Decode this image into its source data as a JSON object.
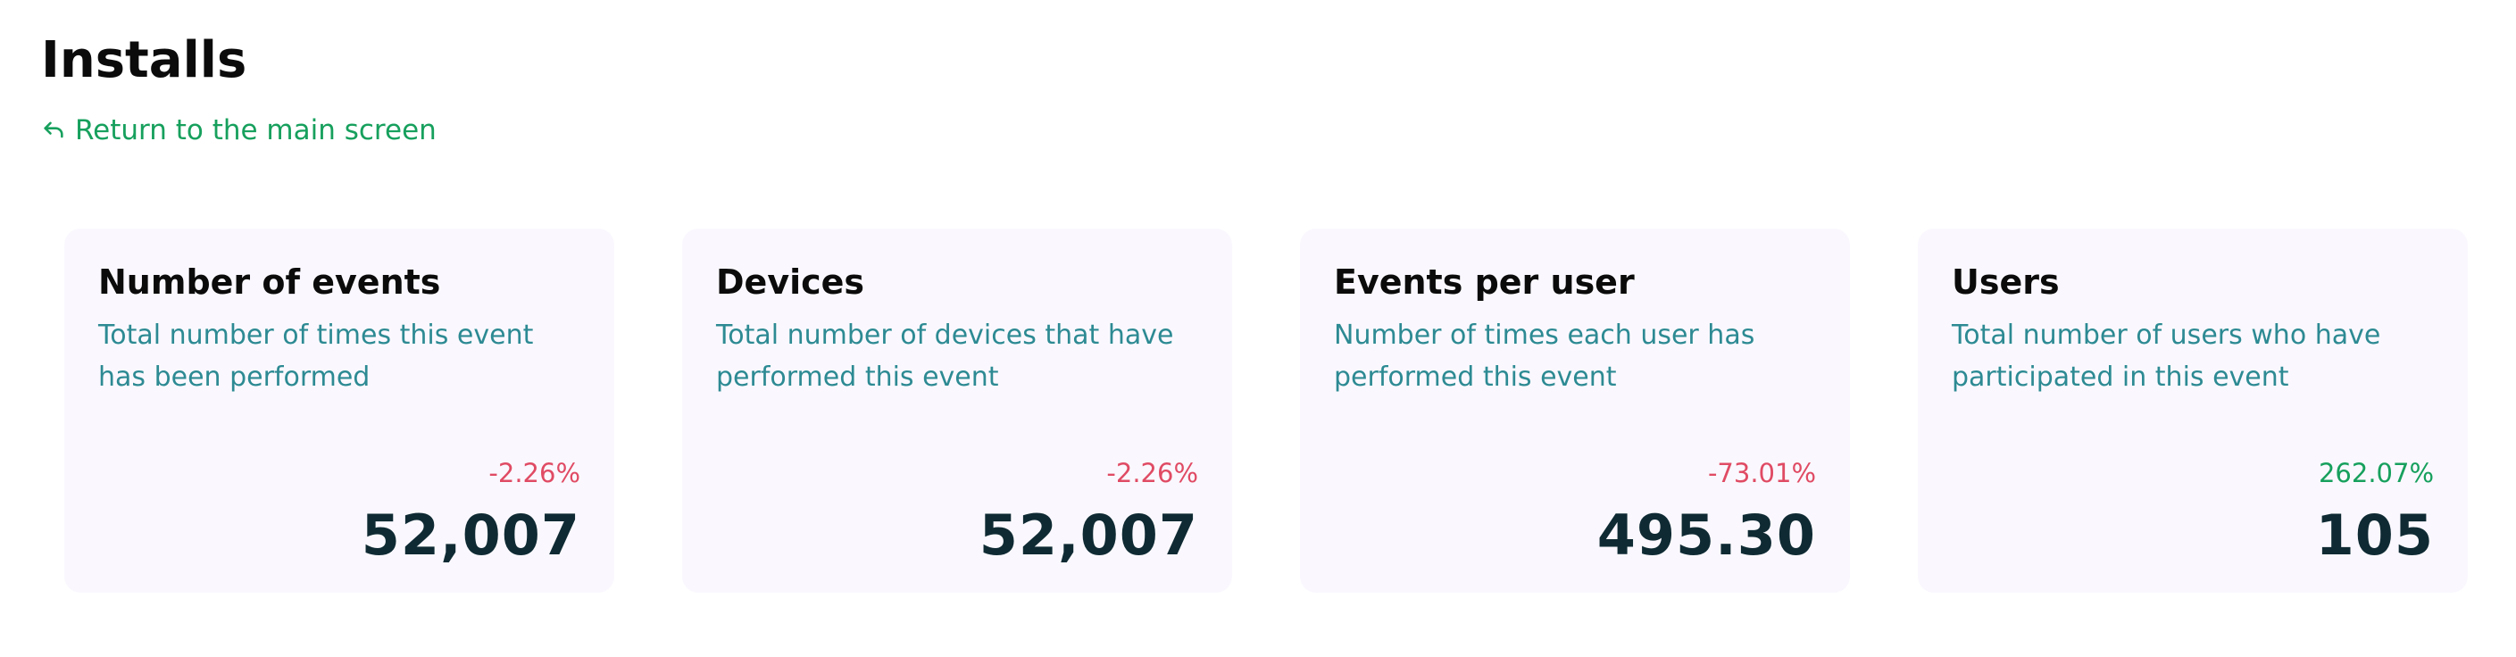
{
  "header": {
    "title": "Installs",
    "back_link": "Return to the main screen"
  },
  "colors": {
    "accent_green": "#17a05d",
    "negative_red": "#e04b64",
    "description_teal": "#2d8a93",
    "value_dark": "#0f2a33",
    "card_background": "#faf8fe"
  },
  "icons": {
    "back": "return-arrow-icon"
  },
  "cards": [
    {
      "title": "Number of events",
      "description": "Total number of times this event has been performed",
      "change": "-2.26%",
      "trend": "negative",
      "value": "52,007"
    },
    {
      "title": "Devices",
      "description": "Total number of devices that have performed this event",
      "change": "-2.26%",
      "trend": "negative",
      "value": "52,007"
    },
    {
      "title": "Events per user",
      "description": "Number of times each user has performed this event",
      "change": "-73.01%",
      "trend": "negative",
      "value": "495.30"
    },
    {
      "title": "Users",
      "description": "Total number of users who have participated in this event",
      "change": "262.07%",
      "trend": "positive",
      "value": "105"
    }
  ]
}
